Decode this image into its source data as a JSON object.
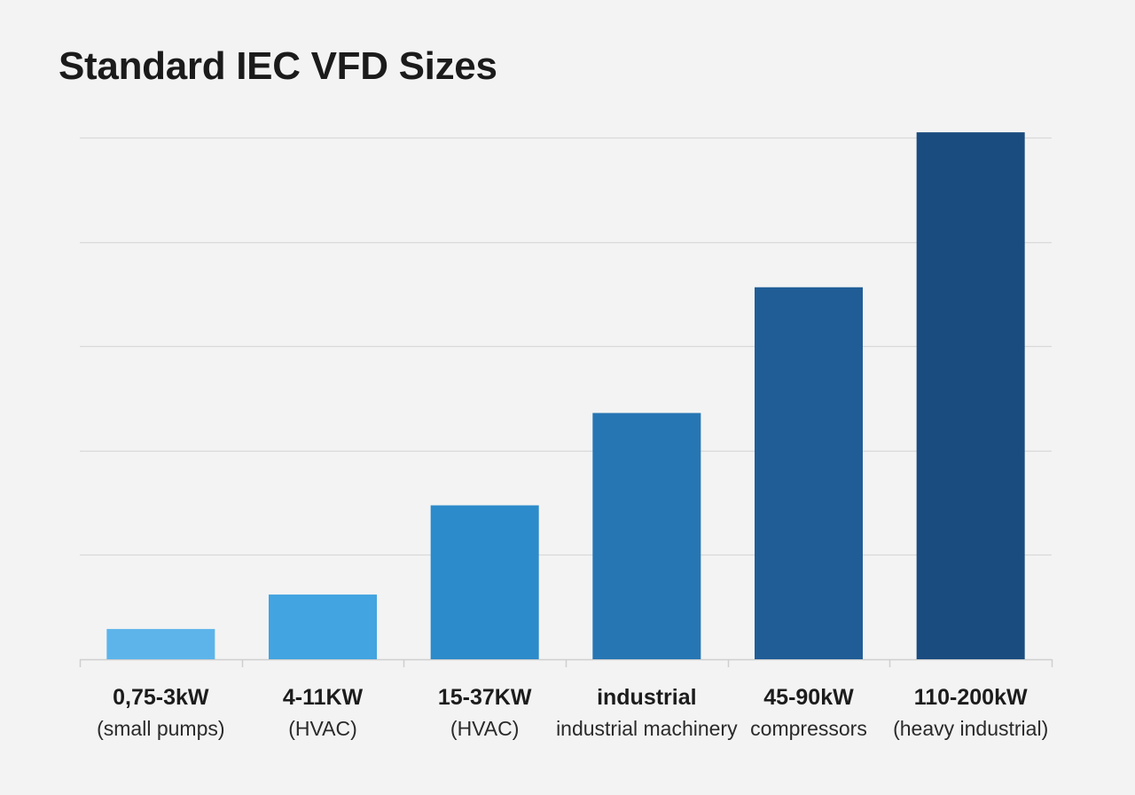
{
  "chart_data": {
    "type": "bar",
    "title": "Standard IEC VFD Sizes",
    "xlabel": "",
    "ylabel": "",
    "grid": true,
    "ylim": [
      0,
      100
    ],
    "categories": [
      {
        "label": "0,75-3kW",
        "sublabel": "(small pumps)"
      },
      {
        "label": "4-11KW",
        "sublabel": "(HVAC)"
      },
      {
        "label": "15-37KW",
        "sublabel": "(HVAC)"
      },
      {
        "label": "industrial",
        "sublabel": "industrial machinery"
      },
      {
        "label": "45-90kW",
        "sublabel": "compressors"
      },
      {
        "label": "110-200kW",
        "sublabel": "(heavy industrial)"
      }
    ],
    "values": [
      5.8,
      12.4,
      29.5,
      47.2,
      71.3,
      101
    ]
  },
  "colors": {
    "bars": [
      "#5db4ea",
      "#42a4e0",
      "#2c8bca",
      "#2676b3",
      "#205d97",
      "#1b4c7f"
    ],
    "grid": "#d9d9d9",
    "axis": "#cfcfcf"
  }
}
